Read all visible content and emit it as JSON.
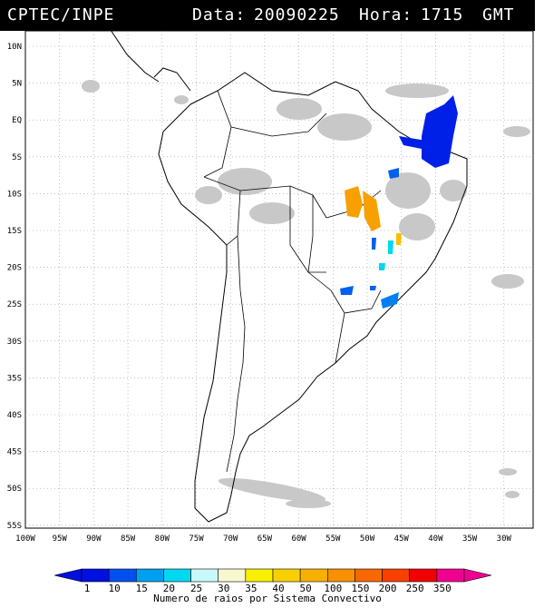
{
  "header": {
    "source": "CPTEC/INPE",
    "date_label": "Data:",
    "date": "20090225",
    "time_label": "Hora:",
    "time": "1715",
    "tz": "GMT"
  },
  "latitude_labels": [
    "10N",
    "5N",
    "EQ",
    "5S",
    "10S",
    "15S",
    "20S",
    "25S",
    "30S",
    "35S",
    "40S",
    "45S",
    "50S",
    "55S"
  ],
  "longitude_labels": [
    "100W",
    "95W",
    "90W",
    "85W",
    "80W",
    "75W",
    "70W",
    "65W",
    "60W",
    "55W",
    "50W",
    "45W",
    "40W",
    "35W",
    "30W"
  ],
  "legend": {
    "title": "Numero de raios por Sistema Convectivo",
    "ticks": [
      "1",
      "10",
      "15",
      "20",
      "25",
      "30",
      "35",
      "40",
      "50",
      "100",
      "150",
      "200",
      "250",
      "350"
    ],
    "colors": [
      "#0010e0",
      "#0050f0",
      "#00a0f0",
      "#00d8f0",
      "#c8f8f8",
      "#f8f8d0",
      "#f8f000",
      "#f8d000",
      "#f8b000",
      "#f89000",
      "#f86800",
      "#f84000",
      "#f00000",
      "#f00090"
    ]
  }
}
